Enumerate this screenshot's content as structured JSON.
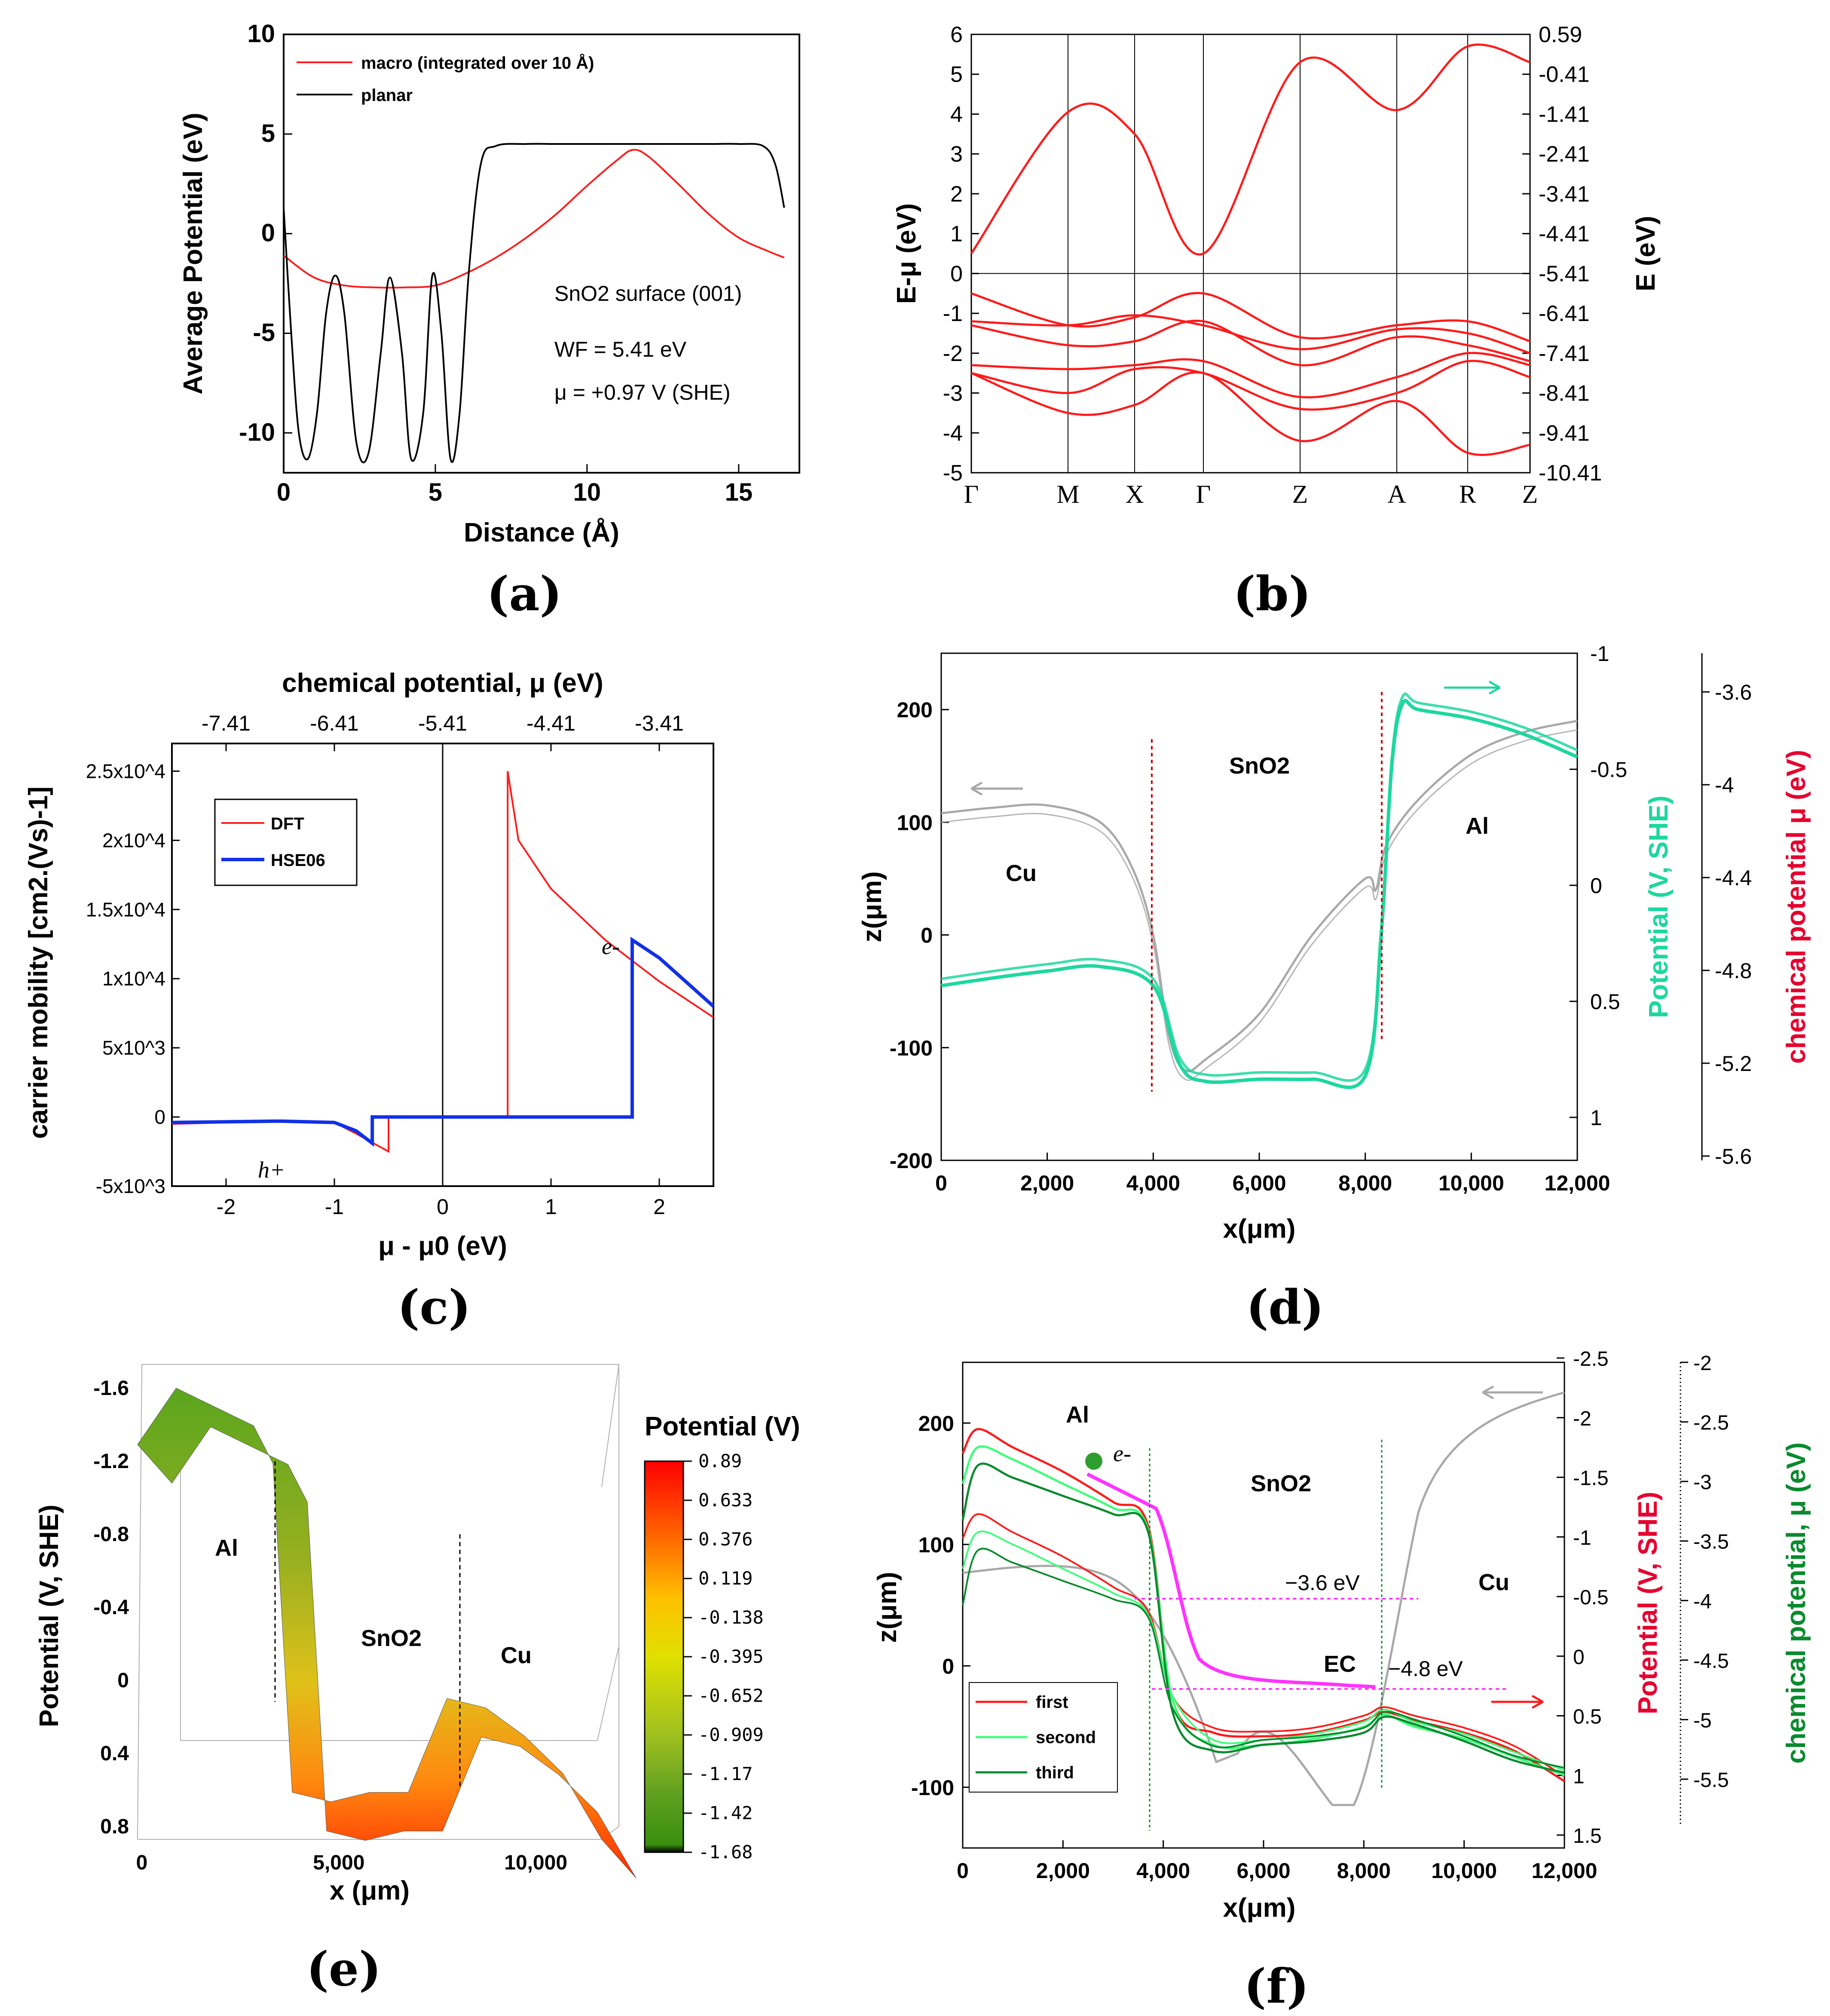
{
  "colors": {
    "red": "#ff1a1a",
    "black": "#000000",
    "blue": "#1230e6",
    "teal": "#1dd7a0",
    "gray": "#a8a8a8",
    "green": "#0a8a2e",
    "lightgreen": "#3cff78",
    "magenta": "#ff33ff",
    "darkred": "#e5002e"
  },
  "panel_labels": [
    "(a)",
    "(b)",
    "(c)",
    "(d)",
    "(e)",
    "(f)"
  ],
  "chart_data": [
    {
      "panel": "(a)",
      "type": "line",
      "xlabel": "Distance (Å)",
      "ylabel": "Average Potential (eV)",
      "xlim": [
        0,
        17
      ],
      "ylim": [
        -12,
        10
      ],
      "xticks": [
        "0",
        "5",
        "10",
        "15"
      ],
      "yticks": [
        "10",
        "5",
        "0",
        "-5",
        "-10"
      ],
      "legend": [
        "macro (integrated over 10 Å)",
        "planar"
      ],
      "annotations": [
        "SnO2 surface (001)",
        "WF = 5.41 eV",
        "μ = +0.97 V (SHE)"
      ],
      "series": [
        {
          "name": "macro (integrated over 10 Å)",
          "x": [
            0,
            1,
            2,
            3,
            4,
            5,
            6,
            7,
            8,
            9,
            10,
            11,
            11.5,
            12,
            13,
            14,
            15,
            16,
            16.5
          ],
          "y": [
            -1.1,
            -2.2,
            -2.6,
            -2.7,
            -2.7,
            -2.6,
            -2.0,
            -1.2,
            -0.2,
            1.0,
            2.4,
            3.7,
            4.2,
            3.9,
            2.5,
            1.0,
            -0.2,
            -0.9,
            -1.2
          ]
        },
        {
          "name": "planar",
          "x": [
            0,
            0.25,
            0.5,
            0.8,
            1.1,
            1.4,
            1.7,
            2.0,
            2.4,
            2.8,
            3.2,
            3.5,
            3.9,
            4.2,
            4.6,
            4.9,
            5.2,
            5.5,
            5.8,
            6.1,
            6.5,
            7,
            8,
            9,
            10,
            11,
            12,
            13,
            14,
            15,
            15.8,
            16.2,
            16.5
          ],
          "y": [
            1.3,
            -5,
            -10,
            -11.3,
            -9,
            -4,
            -2.1,
            -4,
            -10.5,
            -11,
            -6,
            -2.2,
            -6,
            -11.3,
            -9,
            -2.1,
            -5,
            -11.3,
            -9,
            -2,
            3.5,
            4.4,
            4.5,
            4.5,
            4.5,
            4.5,
            4.5,
            4.5,
            4.5,
            4.5,
            4.4,
            3.5,
            1.3
          ]
        }
      ]
    },
    {
      "panel": "(b)",
      "type": "line",
      "ylabel": "E-μ (eV)",
      "ylabel_right": "E (eV)",
      "ylim": [
        -5,
        6
      ],
      "yticks": [
        "6",
        "5",
        "4",
        "3",
        "2",
        "1",
        "0",
        "-1",
        "-2",
        "-3",
        "-4",
        "-5"
      ],
      "yticks_right": [
        "0.59",
        "-0.41",
        "-1.41",
        "-2.41",
        "-3.41",
        "-4.41",
        "-5.41",
        "-6.41",
        "-7.41",
        "-8.41",
        "-9.41",
        "-10.41"
      ],
      "kpoints": [
        "Γ",
        "M",
        "X",
        "Γ",
        "Z",
        "A",
        "R",
        "Z"
      ],
      "series": [
        {
          "name": "",
          "y": [
            0.5,
            4.05,
            3.5,
            0.5,
            5.3,
            4.1,
            5.7,
            5.3
          ]
        },
        {
          "name": "",
          "y": [
            -0.5,
            -1.3,
            -1.1,
            -0.5,
            -1.6,
            -1.3,
            -1.2,
            -1.7
          ]
        },
        {
          "name": "",
          "y": [
            -1.2,
            -1.3,
            -1.05,
            -1.3,
            -1.9,
            -1.4,
            -1.5,
            -2.0
          ]
        },
        {
          "name": "",
          "y": [
            -1.3,
            -1.8,
            -1.7,
            -1.2,
            -2.3,
            -1.6,
            -1.8,
            -2.2
          ]
        },
        {
          "name": "",
          "y": [
            -2.3,
            -2.4,
            -2.3,
            -2.2,
            -3.1,
            -2.6,
            -2.0,
            -2.3
          ]
        },
        {
          "name": "",
          "y": [
            -2.5,
            -3.0,
            -2.4,
            -2.5,
            -3.4,
            -3.0,
            -2.2,
            -2.6
          ]
        },
        {
          "name": "",
          "y": [
            -2.5,
            -3.5,
            -3.3,
            -2.5,
            -4.2,
            -3.2,
            -4.5,
            -4.3
          ]
        }
      ]
    },
    {
      "panel": "(c)",
      "type": "line",
      "title": "chemical potential, μ (eV)",
      "xlabel": "μ - μ0 (eV)",
      "ylabel": "carrier mobility [cm2.(Vs)-1]",
      "xlim": [
        -2.5,
        2.5
      ],
      "ylim": [
        -5000,
        27000
      ],
      "xticks": [
        "-2",
        "-1",
        "0",
        "1",
        "2"
      ],
      "xticks_top": [
        "-7.41",
        "-6.41",
        "-5.41",
        "-4.41",
        "-3.41"
      ],
      "yticks": [
        "2.5x10^4",
        "2x10^4",
        "1.5x10^4",
        "1x10^4",
        "5x10^3",
        "0",
        "-5x10^3"
      ],
      "legend": [
        "DFT",
        "HSE06"
      ],
      "annotations": [
        "h+",
        "e-"
      ],
      "series": [
        {
          "name": "DFT",
          "x": [
            -2.5,
            -1.5,
            -1.0,
            -0.8,
            -0.5,
            -0.5,
            0.6,
            0.6,
            0.62,
            0.7,
            1.0,
            1.5,
            2.0,
            2.5
          ],
          "y": [
            -500,
            -300,
            -400,
            -1200,
            -2500,
            0,
            0,
            25000,
            24000,
            20000,
            16500,
            12800,
            9800,
            7200
          ]
        },
        {
          "name": "HSE06",
          "x": [
            -2.5,
            -1.5,
            -1.0,
            -0.8,
            -0.65,
            -0.65,
            1.75,
            1.75,
            2.0,
            2.5
          ],
          "y": [
            -400,
            -300,
            -400,
            -1000,
            -1900,
            0,
            0,
            12800,
            11500,
            8000
          ]
        }
      ]
    },
    {
      "panel": "(d)",
      "type": "line",
      "xlabel": "x(μm)",
      "ylabel": "z(μm)",
      "ylabel_right": "Potential (V, SHE)",
      "ylabel_right2": "chemical potential μ (eV)",
      "xlim": [
        0,
        12000
      ],
      "ylim": [
        -200,
        250
      ],
      "xticks": [
        "0",
        "2,000",
        "4,000",
        "6,000",
        "8,000",
        "10,000",
        "12,000"
      ],
      "yticks": [
        "200",
        "100",
        "0",
        "-100",
        "-200"
      ],
      "yticks_right": [
        "-1",
        "-0.5",
        "0",
        "0.5",
        "1"
      ],
      "yticks_right2": [
        "-3.6",
        "-4",
        "-4.4",
        "-4.8",
        "-5.2",
        "-5.6"
      ],
      "labels": [
        "Cu",
        "SnO2",
        "Al"
      ],
      "series": [
        {
          "name": "",
          "x": [
            0,
            1000,
            2000,
            3000,
            3600,
            4000,
            4300,
            4600,
            5000,
            6000,
            7000,
            8000,
            8200,
            8400,
            9000,
            10000,
            11000,
            12000
          ],
          "y": [
            108,
            113,
            115,
            100,
            60,
            0,
            -90,
            -120,
            -110,
            -70,
            0,
            50,
            40,
            80,
            120,
            160,
            180,
            190
          ]
        },
        {
          "name": "",
          "x": [
            0,
            1000,
            2000,
            3000,
            4000,
            4500,
            5000,
            6000,
            7000,
            8000,
            8300,
            8500,
            8700,
            9000,
            10000,
            11000,
            12000
          ],
          "y": [
            -45,
            -38,
            -32,
            -28,
            -45,
            -115,
            -130,
            -128,
            -128,
            -125,
            0,
            150,
            205,
            200,
            192,
            178,
            158
          ]
        }
      ]
    },
    {
      "panel": "(e)",
      "type": "area",
      "xlabel": "x (μm)",
      "ylabel": "Potential (V, SHE)",
      "colorbar_title": "Potential (V)",
      "xticks": [
        "0",
        "5,000",
        "10,000"
      ],
      "yticks": [
        "-1.6",
        "-1.2",
        "-0.8",
        "-0.4",
        "0",
        "0.4",
        "0.8"
      ],
      "colorbar_ticks": [
        "0.89",
        "0.633",
        "0.376",
        "0.119",
        "-0.138",
        "-0.395",
        "-0.652",
        "-0.909",
        "-1.17",
        "-1.42",
        "-1.68"
      ],
      "labels": [
        "Al",
        "SnO2",
        "Cu"
      ],
      "series": [
        {
          "name": "",
          "x": [
            0,
            1000,
            2000,
            3000,
            3500,
            4000,
            5000,
            6000,
            7000,
            8000,
            9000,
            10000,
            11000,
            12000
          ],
          "y": [
            -1.3,
            -1.6,
            -1.5,
            -1.4,
            -1.2,
            0.55,
            0.6,
            0.55,
            0.55,
            0.05,
            0.1,
            0.25,
            0.45,
            0.8
          ]
        }
      ]
    },
    {
      "panel": "(f)",
      "type": "line",
      "xlabel": "x(μm)",
      "ylabel": "z(μm)",
      "ylabel_right": "Potential (V, SHE)",
      "ylabel_right2": "chemical potential, μ (eV)",
      "xlim": [
        0,
        12000
      ],
      "ylim": [
        -150,
        250
      ],
      "xticks": [
        "0",
        "2,000",
        "4,000",
        "6,000",
        "8,000",
        "10,000",
        "12,000"
      ],
      "yticks": [
        "200",
        "100",
        "0",
        "-100"
      ],
      "yticks_right": [
        "-2.5",
        "-2",
        "-1.5",
        "-1",
        "-0.5",
        "0",
        "0.5",
        "1",
        "1.5"
      ],
      "yticks_right2": [
        "-2",
        "-2.5",
        "-3",
        "-3.5",
        "-4",
        "-4.5",
        "-5",
        "-5.5"
      ],
      "labels": [
        "Al",
        "SnO2",
        "Cu",
        "EC",
        "e-"
      ],
      "annotations": [
        "−3.6 eV",
        "−4.8 eV"
      ],
      "legend": [
        "first",
        "second",
        "third"
      ],
      "series": [
        {
          "name": "first",
          "x": [
            0,
            300,
            1000,
            2000,
            3000,
            3700,
            4200,
            5000,
            6000,
            7000,
            8000,
            8400,
            9000,
            10000,
            11000,
            12000
          ],
          "y": [
            175,
            195,
            180,
            160,
            135,
            115,
            -30,
            -55,
            -58,
            -55,
            -45,
            -38,
            -45,
            -55,
            -70,
            -95
          ]
        },
        {
          "name": "second",
          "x": [
            0,
            300,
            1000,
            2000,
            3000,
            3700,
            4200,
            5000,
            6000,
            7000,
            8000,
            8400,
            9000,
            10000,
            11000,
            12000
          ],
          "y": [
            150,
            180,
            170,
            150,
            130,
            112,
            -30,
            -65,
            -65,
            -60,
            -50,
            -40,
            -50,
            -60,
            -75,
            -90
          ]
        },
        {
          "name": "third",
          "x": [
            0,
            300,
            1000,
            2000,
            3000,
            3700,
            4200,
            5000,
            6000,
            7000,
            8000,
            8400,
            9000,
            10000,
            11000,
            12000
          ],
          "y": [
            120,
            165,
            155,
            140,
            125,
            110,
            -40,
            -70,
            -65,
            -62,
            -55,
            -42,
            -48,
            -62,
            -78,
            -88
          ]
        }
      ]
    }
  ]
}
